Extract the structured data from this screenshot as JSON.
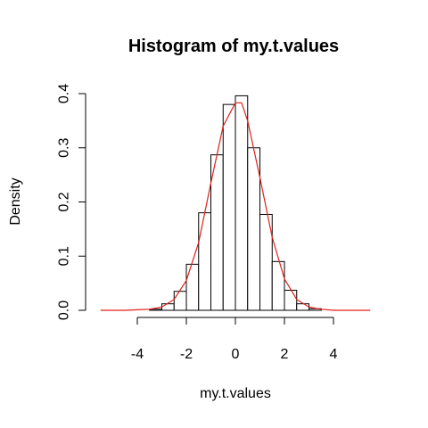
{
  "chart_data": {
    "type": "bar",
    "title": "Histogram of my.t.values",
    "xlabel": "my.t.values",
    "ylabel": "Density",
    "xlim": [
      -5.6,
      5.6
    ],
    "ylim": [
      0,
      0.4
    ],
    "x_ticks": [
      -4,
      -2,
      0,
      2,
      4
    ],
    "y_ticks": [
      0.0,
      0.1,
      0.2,
      0.3,
      0.4
    ],
    "x_tick_labels": [
      "-4",
      "-2",
      "0",
      "2",
      "4"
    ],
    "y_tick_labels": [
      "0.0",
      "0.1",
      "0.2",
      "0.3",
      "0.4"
    ],
    "bins": [
      {
        "x0": -3.5,
        "x1": -3.0,
        "density": 0.002
      },
      {
        "x0": -3.0,
        "x1": -2.5,
        "density": 0.012
      },
      {
        "x0": -2.5,
        "x1": -2.0,
        "density": 0.035
      },
      {
        "x0": -2.0,
        "x1": -1.5,
        "density": 0.085
      },
      {
        "x0": -1.5,
        "x1": -1.0,
        "density": 0.18
      },
      {
        "x0": -1.0,
        "x1": -0.5,
        "density": 0.287
      },
      {
        "x0": -0.5,
        "x1": 0.0,
        "density": 0.38
      },
      {
        "x0": 0.0,
        "x1": 0.5,
        "density": 0.396
      },
      {
        "x0": 0.5,
        "x1": 1.0,
        "density": 0.3
      },
      {
        "x0": 1.0,
        "x1": 1.5,
        "density": 0.177
      },
      {
        "x0": 1.5,
        "x1": 2.0,
        "density": 0.09
      },
      {
        "x0": 2.0,
        "x1": 2.5,
        "density": 0.037
      },
      {
        "x0": 2.5,
        "x1": 3.0,
        "density": 0.012
      },
      {
        "x0": 3.0,
        "x1": 3.5,
        "density": 0.003
      }
    ],
    "density_curve": {
      "color": "#e0201b",
      "points": [
        [
          -5.5,
          0.0
        ],
        [
          -4.5,
          0.0
        ],
        [
          -4.0,
          0.001
        ],
        [
          -3.5,
          0.002
        ],
        [
          -3.0,
          0.006
        ],
        [
          -2.5,
          0.02
        ],
        [
          -2.0,
          0.055
        ],
        [
          -1.5,
          0.125
        ],
        [
          -1.0,
          0.235
        ],
        [
          -0.5,
          0.34
        ],
        [
          0.0,
          0.383
        ],
        [
          0.25,
          0.383
        ],
        [
          0.5,
          0.35
        ],
        [
          1.0,
          0.245
        ],
        [
          1.5,
          0.135
        ],
        [
          2.0,
          0.058
        ],
        [
          2.5,
          0.02
        ],
        [
          3.0,
          0.006
        ],
        [
          3.5,
          0.002
        ],
        [
          4.0,
          0.0
        ],
        [
          5.5,
          0.0
        ]
      ]
    },
    "grid": false,
    "bar_fill": "#ffffff",
    "bar_stroke": "#000000"
  }
}
